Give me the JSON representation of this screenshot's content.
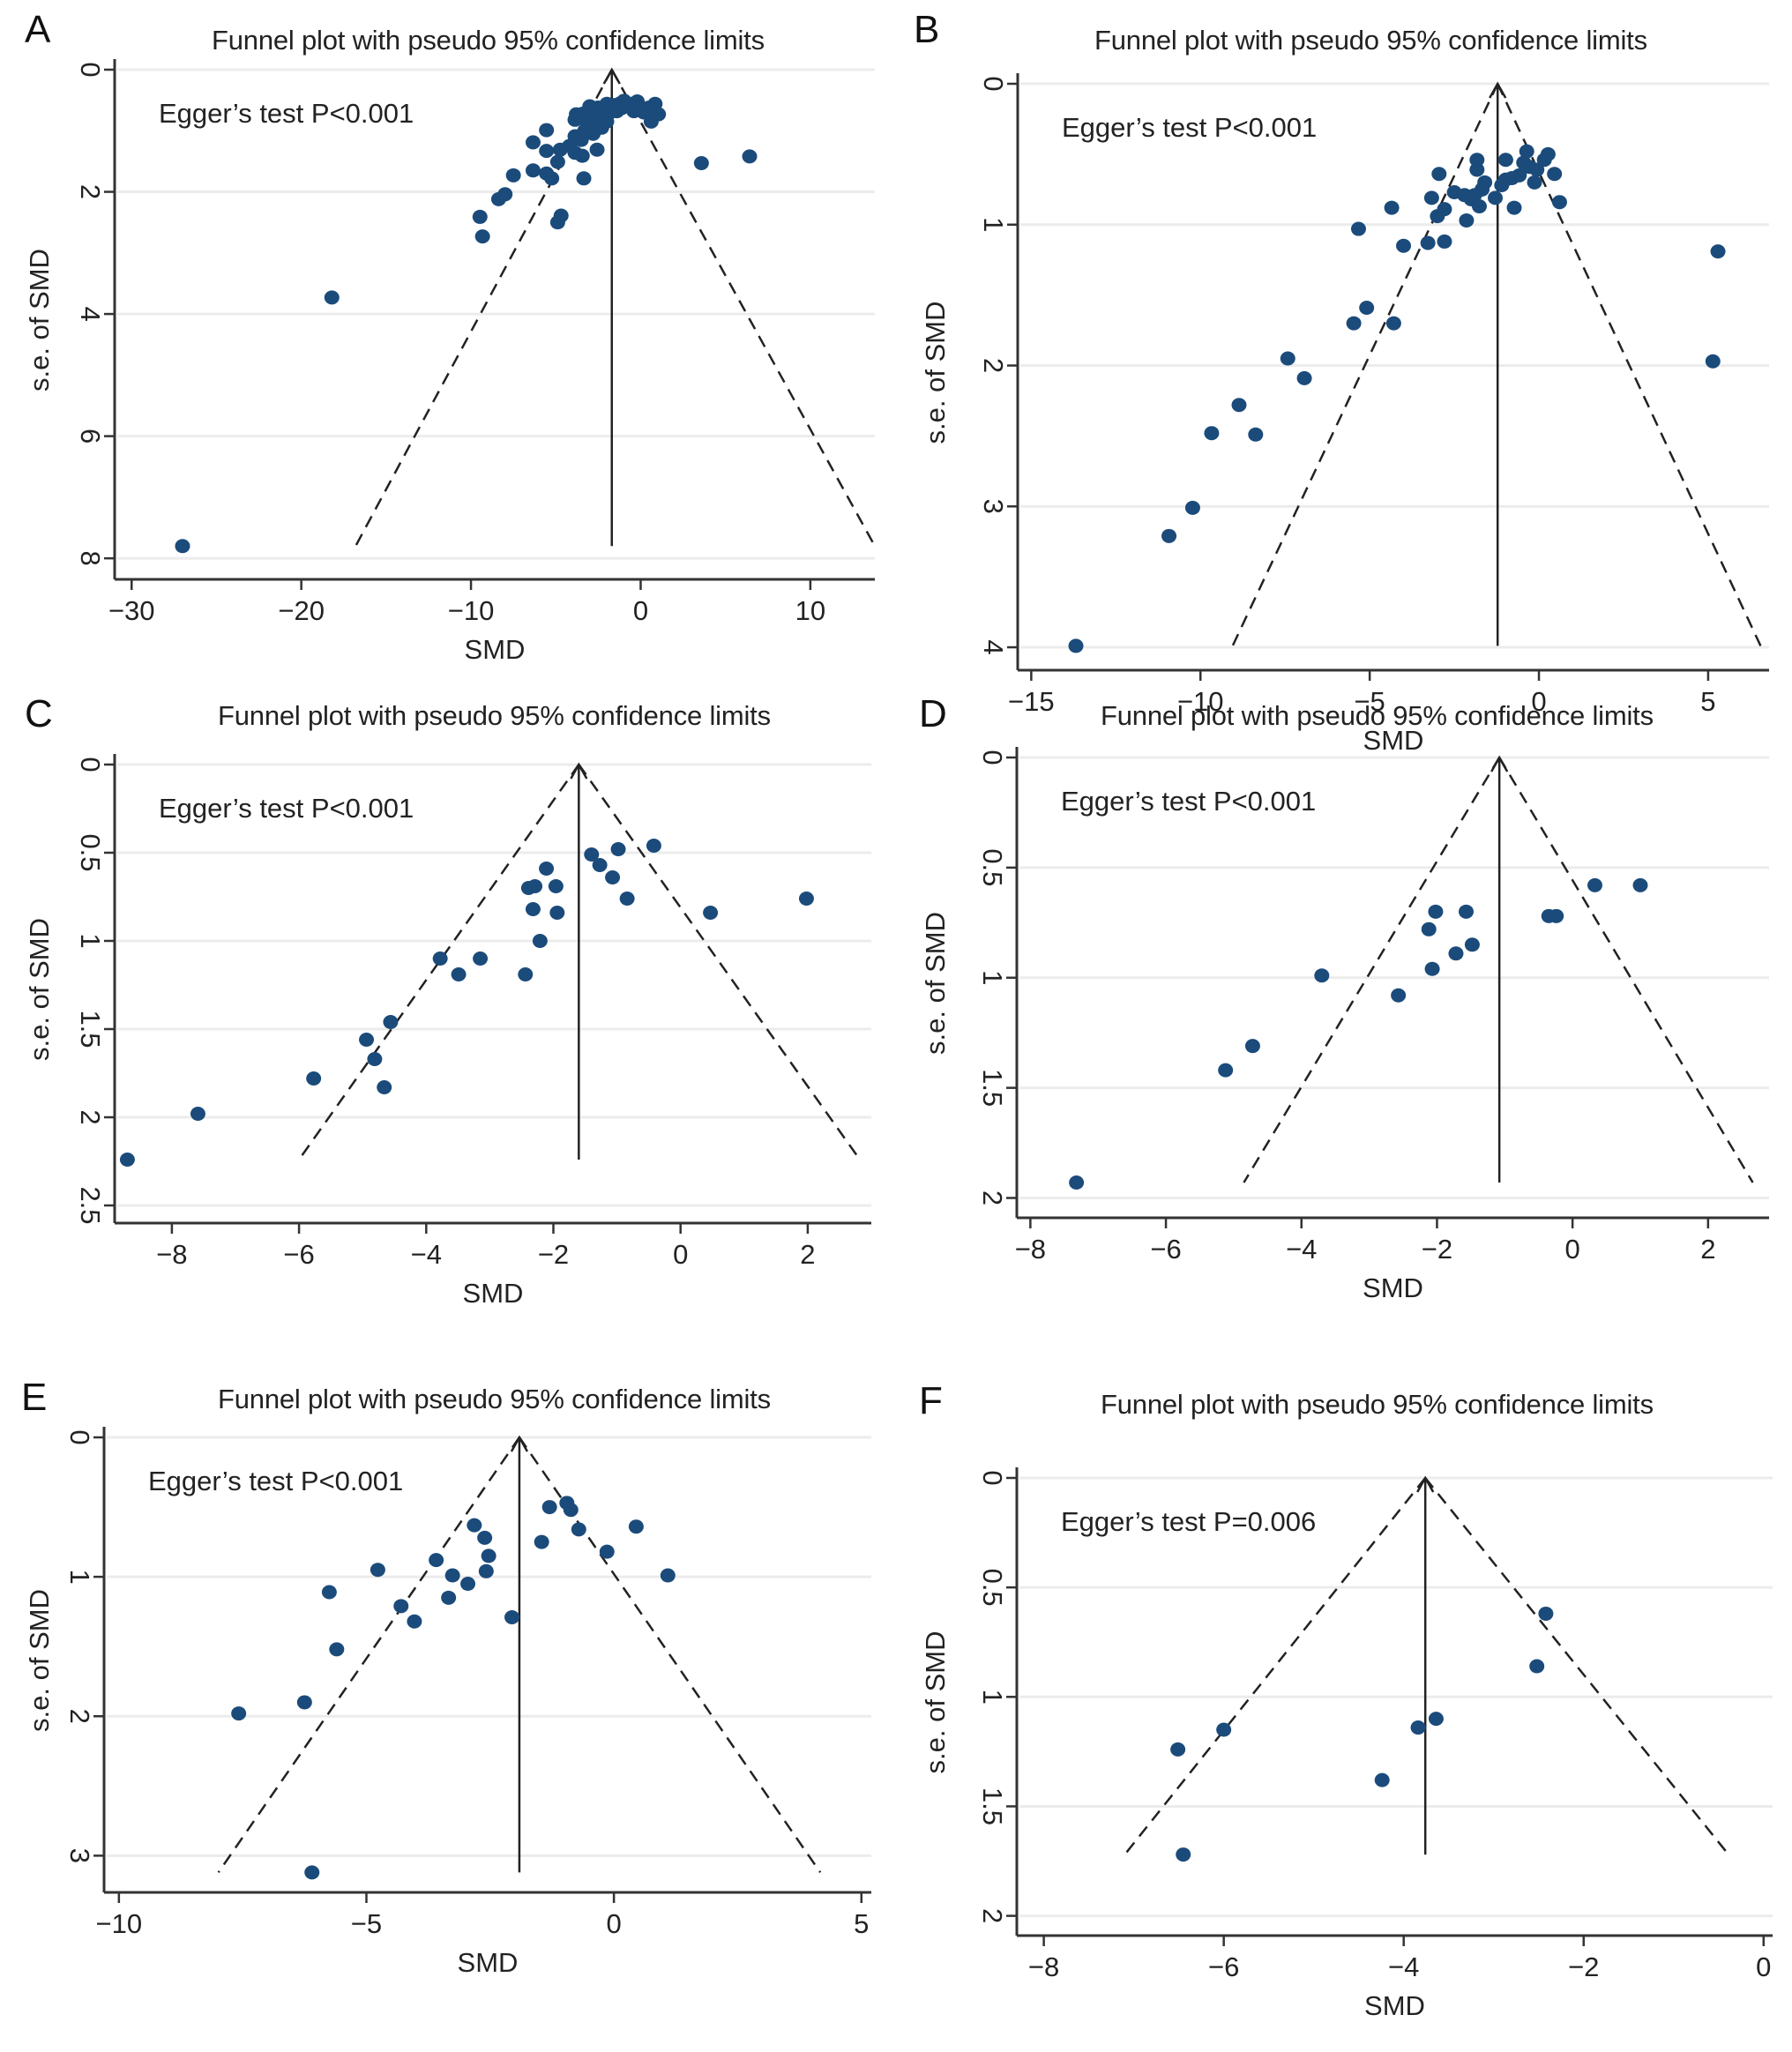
{
  "figure": {
    "panels": [
      "A",
      "B",
      "C",
      "D",
      "E",
      "F"
    ],
    "colors": {
      "point": "#1b4b7b",
      "axis": "#333333",
      "grid": "#ececec",
      "funnel": "#222222"
    }
  },
  "chart_data": [
    {
      "panel": "A",
      "type": "scatter",
      "title": "Funnel plot with pseudo 95% confidence limits",
      "xlabel": "SMD",
      "ylabel": "s.e. of SMD",
      "annotation": "Egger’s test P<0.001",
      "xlim": [
        -31,
        13.8
      ],
      "ylim": [
        0,
        8.2
      ],
      "y_inverted": true,
      "xticks": [
        -30,
        -20,
        -10,
        0,
        10
      ],
      "yticks": [
        0,
        2,
        4,
        6,
        8
      ],
      "xtick_labels": [
        "−30",
        "−20",
        "−10",
        "0",
        "10"
      ],
      "ytick_labels": [
        "0",
        "2",
        "4",
        "6",
        "8"
      ],
      "grid": true,
      "pooled_effect": -1.7,
      "funnel_max_se": 7.8,
      "funnel_left_end": -16.8,
      "funnel_right_end": 13.8,
      "points": [
        [
          -27.0,
          7.8
        ],
        [
          -18.2,
          3.73
        ],
        [
          -9.47,
          2.41
        ],
        [
          -9.32,
          2.73
        ],
        [
          -8.37,
          2.12
        ],
        [
          -7.99,
          2.04
        ],
        [
          -7.5,
          1.73
        ],
        [
          -6.34,
          1.65
        ],
        [
          -5.55,
          1.7
        ],
        [
          -5.24,
          1.78
        ],
        [
          -4.89,
          2.5
        ],
        [
          -4.69,
          2.39
        ],
        [
          -3.35,
          1.78
        ],
        [
          -6.34,
          1.19
        ],
        [
          -5.55,
          0.99
        ],
        [
          -5.55,
          1.33
        ],
        [
          -4.74,
          1.31
        ],
        [
          -4.89,
          1.51
        ],
        [
          -3.87,
          1.36
        ],
        [
          -3.44,
          1.41
        ],
        [
          -2.57,
          1.31
        ],
        [
          -3.87,
          1.09
        ],
        [
          -3.79,
          0.73
        ],
        [
          -3.87,
          0.82
        ],
        [
          -3.0,
          0.6
        ],
        [
          -3.15,
          0.95
        ],
        [
          -2.86,
          0.8
        ],
        [
          -2.57,
          0.7
        ],
        [
          -2.42,
          0.87
        ],
        [
          -2.13,
          0.75
        ],
        [
          -1.99,
          0.56
        ],
        [
          -1.55,
          0.58
        ],
        [
          -1.12,
          0.63
        ],
        [
          -0.98,
          0.51
        ],
        [
          -0.54,
          0.56
        ],
        [
          -0.4,
          0.68
        ],
        [
          -0.11,
          0.6
        ],
        [
          0.18,
          0.7
        ],
        [
          0.62,
          0.85
        ],
        [
          0.85,
          0.56
        ],
        [
          1.05,
          0.73
        ],
        [
          3.58,
          1.53
        ],
        [
          6.42,
          1.42
        ],
        [
          -3.3,
          1.0
        ],
        [
          -2.7,
          0.9
        ],
        [
          -2.3,
          0.95
        ],
        [
          -2.0,
          0.85
        ],
        [
          -2.8,
          1.05
        ],
        [
          -3.5,
          1.15
        ],
        [
          -4.2,
          1.25
        ],
        [
          -1.8,
          0.7
        ],
        [
          -1.4,
          0.68
        ],
        [
          -0.8,
          0.6
        ],
        [
          -2.5,
          0.62
        ],
        [
          -3.4,
          0.72
        ],
        [
          -1.2,
          0.55
        ],
        [
          0.5,
          0.62
        ],
        [
          -0.2,
          0.52
        ],
        [
          -2.2,
          0.65
        ],
        [
          -3.1,
          0.88
        ]
      ]
    },
    {
      "panel": "B",
      "type": "scatter",
      "title": "Funnel plot with pseudo 95% confidence limits",
      "xlabel": "SMD",
      "ylabel": "s.e. of SMD",
      "annotation": "Egger’s test P<0.001",
      "xlim": [
        -15.4,
        6.8
      ],
      "ylim": [
        0,
        4.1
      ],
      "y_inverted": true,
      "xticks": [
        -15,
        -10,
        -5,
        0,
        5
      ],
      "yticks": [
        0,
        1,
        2,
        3,
        4
      ],
      "xtick_labels": [
        "−15",
        "−10",
        "−5",
        "0",
        "5"
      ],
      "ytick_labels": [
        "0",
        "1",
        "2",
        "3",
        "4"
      ],
      "grid": true,
      "pooled_effect": -1.22,
      "funnel_max_se": 3.99,
      "funnel_left_end": -9.05,
      "funnel_right_end": 6.55,
      "points": [
        [
          -13.68,
          3.99
        ],
        [
          -10.93,
          3.21
        ],
        [
          -10.23,
          3.01
        ],
        [
          -9.67,
          2.48
        ],
        [
          -8.86,
          2.28
        ],
        [
          -8.37,
          2.49
        ],
        [
          -7.42,
          1.95
        ],
        [
          -6.93,
          2.09
        ],
        [
          -5.47,
          1.7
        ],
        [
          -5.09,
          1.59
        ],
        [
          -4.29,
          1.7
        ],
        [
          -5.33,
          1.03
        ],
        [
          -4.35,
          0.88
        ],
        [
          -4.0,
          1.15
        ],
        [
          -3.28,
          1.13
        ],
        [
          -2.79,
          1.12
        ],
        [
          -3.17,
          0.81
        ],
        [
          -2.95,
          0.64
        ],
        [
          -3.0,
          0.94
        ],
        [
          -2.79,
          0.89
        ],
        [
          -2.14,
          0.97
        ],
        [
          -2.5,
          0.77
        ],
        [
          -2.2,
          0.79
        ],
        [
          -1.83,
          0.54
        ],
        [
          -1.83,
          0.61
        ],
        [
          -1.68,
          0.75
        ],
        [
          -1.76,
          0.87
        ],
        [
          -1.9,
          0.79
        ],
        [
          -1.29,
          0.81
        ],
        [
          -0.98,
          0.54
        ],
        [
          -0.98,
          0.68
        ],
        [
          -0.73,
          0.88
        ],
        [
          -0.8,
          0.67
        ],
        [
          -0.58,
          0.65
        ],
        [
          -0.36,
          0.48
        ],
        [
          -0.28,
          0.59
        ],
        [
          -0.13,
          0.7
        ],
        [
          -0.06,
          0.61
        ],
        [
          0.16,
          0.54
        ],
        [
          0.27,
          0.5
        ],
        [
          0.46,
          0.64
        ],
        [
          0.61,
          0.84
        ],
        [
          5.29,
          1.19
        ],
        [
          5.14,
          1.97
        ],
        [
          -1.6,
          0.7
        ],
        [
          -1.1,
          0.72
        ],
        [
          -0.45,
          0.56
        ],
        [
          -2.0,
          0.82
        ]
      ]
    },
    {
      "panel": "C",
      "type": "scatter",
      "title": "Funnel plot with pseudo 95% confidence limits",
      "xlabel": "SMD",
      "ylabel": "s.e. of SMD",
      "annotation": "Egger’s test P<0.001",
      "xlim": [
        -8.9,
        3.0
      ],
      "ylim": [
        0,
        2.55
      ],
      "y_inverted": true,
      "xticks": [
        -8,
        -6,
        -4,
        -2,
        0,
        2
      ],
      "yticks": [
        0,
        0.5,
        1,
        1.5,
        2,
        2.5
      ],
      "xtick_labels": [
        "−8",
        "−6",
        "−4",
        "−2",
        "0",
        "2"
      ],
      "ytick_labels": [
        "0",
        "0.5",
        "1",
        "1.5",
        "2",
        "2.5"
      ],
      "grid": true,
      "pooled_effect": -1.6,
      "funnel_max_se": 2.24,
      "funnel_left_end": -6.0,
      "funnel_right_end": 2.82,
      "points": [
        [
          -8.7,
          2.24
        ],
        [
          -7.59,
          1.98
        ],
        [
          -5.77,
          1.78
        ],
        [
          -4.94,
          1.56
        ],
        [
          -4.81,
          1.67
        ],
        [
          -4.56,
          1.46
        ],
        [
          -4.66,
          1.83
        ],
        [
          -3.78,
          1.1
        ],
        [
          -3.49,
          1.19
        ],
        [
          -3.15,
          1.1
        ],
        [
          -2.44,
          1.19
        ],
        [
          -2.21,
          1.0
        ],
        [
          -2.32,
          0.82
        ],
        [
          -1.94,
          0.84
        ],
        [
          -2.39,
          0.7
        ],
        [
          -2.29,
          0.69
        ],
        [
          -1.96,
          0.69
        ],
        [
          -2.11,
          0.59
        ],
        [
          -1.4,
          0.51
        ],
        [
          -1.27,
          0.57
        ],
        [
          -0.98,
          0.48
        ],
        [
          -1.07,
          0.64
        ],
        [
          -0.84,
          0.76
        ],
        [
          -0.42,
          0.46
        ],
        [
          0.47,
          0.84
        ],
        [
          1.98,
          0.76
        ]
      ]
    },
    {
      "panel": "D",
      "type": "scatter",
      "title": "Funnel plot with pseudo 95% confidence limits",
      "xlabel": "SMD",
      "ylabel": "s.e. of SMD",
      "annotation": "Egger’s test P<0.001",
      "xlim": [
        -8.2,
        2.9
      ],
      "ylim": [
        0,
        2.05
      ],
      "y_inverted": true,
      "xticks": [
        -8,
        -6,
        -4,
        -2,
        0,
        2
      ],
      "yticks": [
        0,
        0.5,
        1,
        1.5,
        2
      ],
      "xtick_labels": [
        "−8",
        "−6",
        "−4",
        "−2",
        "0",
        "2"
      ],
      "ytick_labels": [
        "0",
        "0.5",
        "1",
        "1.5",
        "2"
      ],
      "grid": true,
      "pooled_effect": -1.08,
      "funnel_max_se": 1.93,
      "funnel_left_end": -4.85,
      "funnel_right_end": 2.66,
      "points": [
        [
          -7.32,
          1.93
        ],
        [
          -5.12,
          1.42
        ],
        [
          -4.72,
          1.31
        ],
        [
          -3.7,
          0.99
        ],
        [
          -2.57,
          1.08
        ],
        [
          -2.07,
          0.96
        ],
        [
          -2.12,
          0.78
        ],
        [
          -2.02,
          0.7
        ],
        [
          -1.57,
          0.7
        ],
        [
          -1.72,
          0.89
        ],
        [
          -1.48,
          0.85
        ],
        [
          -0.35,
          0.72
        ],
        [
          -0.24,
          0.72
        ],
        [
          0.33,
          0.58
        ],
        [
          1.0,
          0.58
        ]
      ]
    },
    {
      "panel": "E",
      "type": "scatter",
      "title": "Funnel plot with pseudo 95% confidence limits",
      "xlabel": "SMD",
      "ylabel": "s.e. of SMD",
      "annotation": "Egger’s test P<0.001",
      "xlim": [
        -10.3,
        5.2
      ],
      "ylim": [
        0,
        3.2
      ],
      "y_inverted": true,
      "xticks": [
        -10,
        -5,
        0,
        5
      ],
      "yticks": [
        0,
        1,
        2,
        3
      ],
      "xtick_labels": [
        "−10",
        "−5",
        "0",
        "5"
      ],
      "ytick_labels": [
        "0",
        "1",
        "2",
        "3"
      ],
      "grid": true,
      "pooled_effect": -1.91,
      "funnel_max_se": 3.12,
      "funnel_left_end": -7.99,
      "funnel_right_end": 4.17,
      "points": [
        [
          -7.58,
          1.98
        ],
        [
          -6.25,
          1.9
        ],
        [
          -6.1,
          3.12
        ],
        [
          -5.75,
          1.11
        ],
        [
          -5.6,
          1.52
        ],
        [
          -4.77,
          0.95
        ],
        [
          -4.3,
          1.21
        ],
        [
          -4.03,
          1.32
        ],
        [
          -3.59,
          0.88
        ],
        [
          -3.34,
          1.15
        ],
        [
          -3.26,
          0.99
        ],
        [
          -2.95,
          1.05
        ],
        [
          -2.82,
          0.63
        ],
        [
          -2.61,
          0.72
        ],
        [
          -2.53,
          0.85
        ],
        [
          -2.58,
          0.96
        ],
        [
          -2.06,
          1.29
        ],
        [
          -1.46,
          0.75
        ],
        [
          -1.3,
          0.5
        ],
        [
          -0.95,
          0.47
        ],
        [
          -0.87,
          0.52
        ],
        [
          -0.71,
          0.66
        ],
        [
          -0.14,
          0.82
        ],
        [
          0.45,
          0.64
        ],
        [
          1.09,
          0.99
        ]
      ]
    },
    {
      "panel": "F",
      "type": "scatter",
      "title": "Funnel plot with pseudo 95% confidence limits",
      "xlabel": "SMD",
      "ylabel": "s.e. of SMD",
      "annotation": "Egger’s test P=0.006",
      "xlim": [
        -8.3,
        0.1
      ],
      "ylim": [
        0,
        2.05
      ],
      "y_inverted": true,
      "xticks": [
        -8,
        -6,
        -4,
        -2,
        0
      ],
      "yticks": [
        0,
        0.5,
        1,
        1.5,
        2
      ],
      "xtick_labels": [
        "−8",
        "−6",
        "−4",
        "−2",
        "0"
      ],
      "ytick_labels": [
        "0",
        "0.5",
        "1",
        "1.5",
        "2"
      ],
      "grid": true,
      "pooled_effect": -3.76,
      "funnel_max_se": 1.72,
      "funnel_left_end": -7.1,
      "funnel_right_end": -0.39,
      "points": [
        [
          -2.42,
          0.62
        ],
        [
          -2.52,
          0.86
        ],
        [
          -3.64,
          1.1
        ],
        [
          -3.84,
          1.14
        ],
        [
          -6.0,
          1.15
        ],
        [
          -6.51,
          1.24
        ],
        [
          -4.24,
          1.38
        ],
        [
          -6.45,
          1.72
        ]
      ]
    }
  ]
}
